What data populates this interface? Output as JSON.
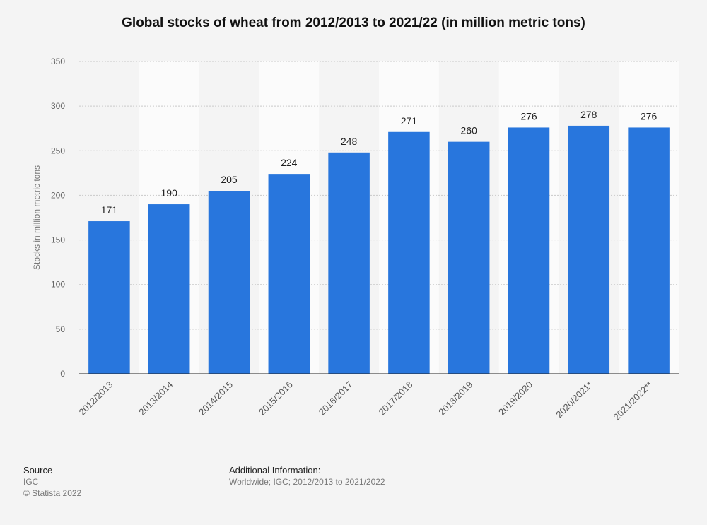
{
  "chart_data": {
    "type": "bar",
    "title": "Global stocks of wheat from 2012/2013 to 2021/22 (in million metric tons)",
    "xlabel": "",
    "ylabel": "Stocks in million metric tons",
    "categories": [
      "2012/2013",
      "2013/2014",
      "2014/2015",
      "2015/2016",
      "2016/2017",
      "2017/2018",
      "2018/2019",
      "2019/2020",
      "2020/2021*",
      "2021/2022**"
    ],
    "values": [
      171,
      190,
      205,
      224,
      248,
      271,
      260,
      276,
      278,
      276
    ],
    "ylim": [
      0,
      350
    ],
    "yticks": [
      0,
      50,
      100,
      150,
      200,
      250,
      300,
      350
    ],
    "grid": true,
    "bar_color": "#2876dd"
  },
  "footer": {
    "source_heading": "Source",
    "source_text": "IGC",
    "copyright": "© Statista 2022",
    "additional_heading": "Additional Information:",
    "additional_text": "Worldwide; IGC; 2012/2013 to 2021/2022"
  }
}
